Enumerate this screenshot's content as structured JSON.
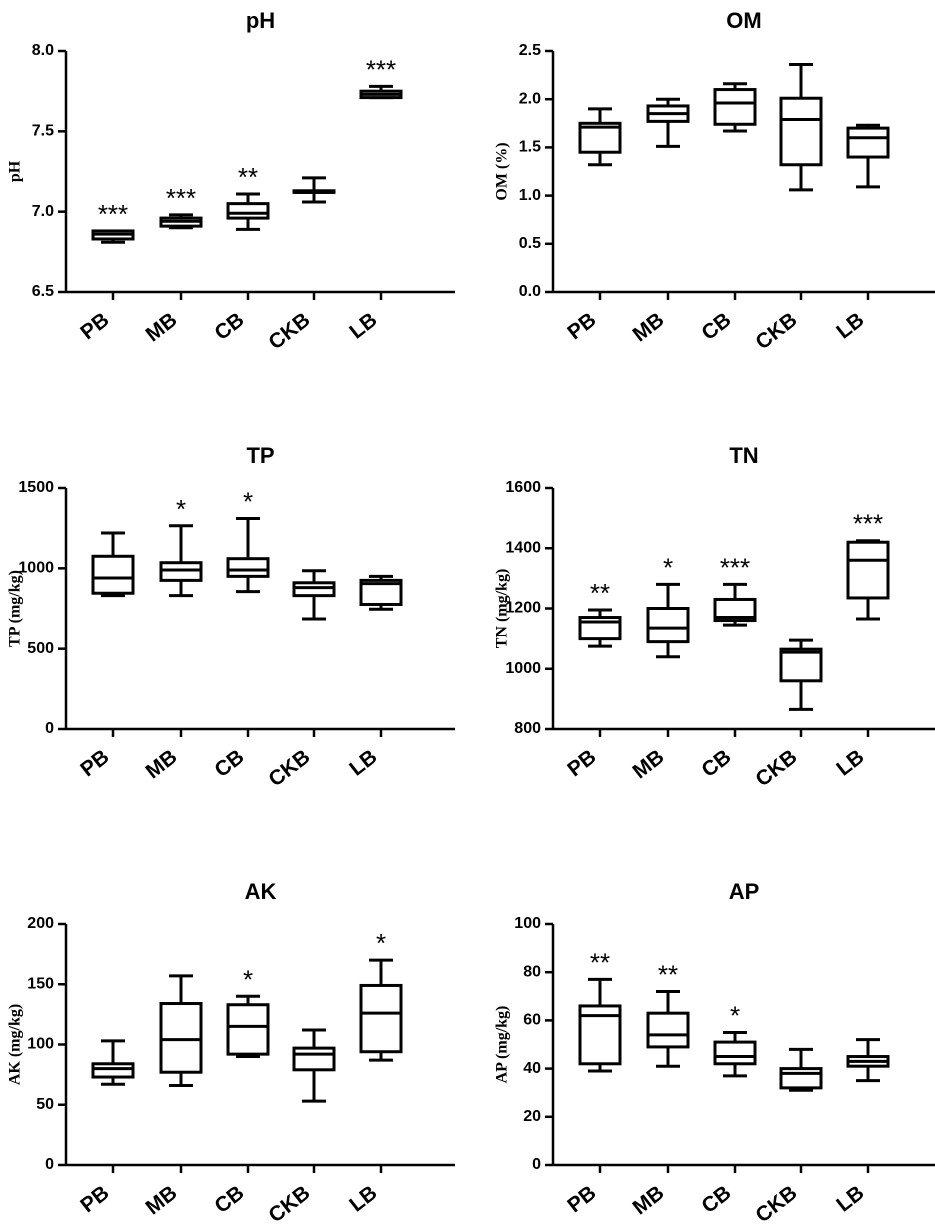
{
  "chart_data": [
    {
      "type": "boxplot",
      "title": "pH",
      "ylabel": "pH",
      "ylim": [
        6.5,
        8.0
      ],
      "yticks": [
        "6.5",
        "7.0",
        "7.5",
        "8.0"
      ],
      "categories": [
        "PB",
        "MB",
        "CB",
        "CKB",
        "LB"
      ],
      "boxes": [
        {
          "min": 6.81,
          "q1": 6.83,
          "median": 6.86,
          "q3": 6.88,
          "max": 6.88
        },
        {
          "min": 6.9,
          "q1": 6.91,
          "median": 6.94,
          "q3": 6.96,
          "max": 6.98
        },
        {
          "min": 6.89,
          "q1": 6.96,
          "median": 6.99,
          "q3": 7.05,
          "max": 7.11
        },
        {
          "min": 7.06,
          "q1": 7.12,
          "median": 7.12,
          "q3": 7.13,
          "max": 7.21
        },
        {
          "min": 7.71,
          "q1": 7.71,
          "median": 7.73,
          "q3": 7.75,
          "max": 7.78
        }
      ],
      "significance": [
        "***",
        "***",
        "**",
        "",
        "***"
      ]
    },
    {
      "type": "boxplot",
      "title": "OM",
      "ylabel": "OM (%)",
      "ylim": [
        0.0,
        2.5
      ],
      "yticks": [
        "0.0",
        "0.5",
        "1.0",
        "1.5",
        "2.0",
        "2.5"
      ],
      "categories": [
        "PB",
        "MB",
        "CB",
        "CKB",
        "LB"
      ],
      "boxes": [
        {
          "min": 1.32,
          "q1": 1.45,
          "median": 1.71,
          "q3": 1.75,
          "max": 1.9
        },
        {
          "min": 1.51,
          "q1": 1.77,
          "median": 1.85,
          "q3": 1.93,
          "max": 2.0
        },
        {
          "min": 1.67,
          "q1": 1.74,
          "median": 1.96,
          "q3": 2.1,
          "max": 2.16
        },
        {
          "min": 1.06,
          "q1": 1.32,
          "median": 1.79,
          "q3": 2.01,
          "max": 2.36
        },
        {
          "min": 1.09,
          "q1": 1.4,
          "median": 1.6,
          "q3": 1.7,
          "max": 1.73
        }
      ],
      "significance": [
        "",
        "",
        "",
        "",
        ""
      ]
    },
    {
      "type": "boxplot",
      "title": "TP",
      "ylabel": "TP (mg/kg)",
      "ylim": [
        0,
        1500
      ],
      "yticks": [
        "0",
        "500",
        "1000",
        "1500"
      ],
      "categories": [
        "PB",
        "MB",
        "CB",
        "CKB",
        "LB"
      ],
      "boxes": [
        {
          "min": 830,
          "q1": 845,
          "median": 940,
          "q3": 1075,
          "max": 1220
        },
        {
          "min": 830,
          "q1": 925,
          "median": 990,
          "q3": 1035,
          "max": 1265
        },
        {
          "min": 855,
          "q1": 950,
          "median": 990,
          "q3": 1060,
          "max": 1310
        },
        {
          "min": 685,
          "q1": 830,
          "median": 880,
          "q3": 910,
          "max": 985
        },
        {
          "min": 745,
          "q1": 775,
          "median": 905,
          "q3": 925,
          "max": 950
        }
      ],
      "significance": [
        "",
        "*",
        "*",
        "",
        ""
      ]
    },
    {
      "type": "boxplot",
      "title": "TN",
      "ylabel": "TN (mg/kg)",
      "ylim": [
        800,
        1600
      ],
      "yticks": [
        "800",
        "1000",
        "1200",
        "1400",
        "1600"
      ],
      "categories": [
        "PB",
        "MB",
        "CB",
        "CKB",
        "LB"
      ],
      "boxes": [
        {
          "min": 1075,
          "q1": 1100,
          "median": 1155,
          "q3": 1170,
          "max": 1195
        },
        {
          "min": 1040,
          "q1": 1090,
          "median": 1135,
          "q3": 1200,
          "max": 1280
        },
        {
          "min": 1145,
          "q1": 1160,
          "median": 1170,
          "q3": 1230,
          "max": 1280
        },
        {
          "min": 865,
          "q1": 960,
          "median": 1055,
          "q3": 1065,
          "max": 1095
        },
        {
          "min": 1165,
          "q1": 1235,
          "median": 1360,
          "q3": 1420,
          "max": 1425
        }
      ],
      "significance": [
        "**",
        "*",
        "***",
        "",
        "***"
      ]
    },
    {
      "type": "boxplot",
      "title": "AK",
      "ylabel": "AK (mg/kg)",
      "ylim": [
        0,
        200
      ],
      "yticks": [
        "0",
        "50",
        "100",
        "150",
        "200"
      ],
      "categories": [
        "PB",
        "MB",
        "CB",
        "CKB",
        "LB"
      ],
      "boxes": [
        {
          "min": 67,
          "q1": 73,
          "median": 80,
          "q3": 84,
          "max": 103
        },
        {
          "min": 66,
          "q1": 77,
          "median": 104,
          "q3": 134,
          "max": 157
        },
        {
          "min": 90,
          "q1": 92,
          "median": 115,
          "q3": 133,
          "max": 140
        },
        {
          "min": 53,
          "q1": 79,
          "median": 92,
          "q3": 97,
          "max": 112
        },
        {
          "min": 87,
          "q1": 94,
          "median": 126,
          "q3": 149,
          "max": 170
        }
      ],
      "significance": [
        "",
        "",
        "*",
        "",
        "*"
      ]
    },
    {
      "type": "boxplot",
      "title": "AP",
      "ylabel": "AP (mg/kg)",
      "ylim": [
        0,
        100
      ],
      "yticks": [
        "0",
        "20",
        "40",
        "60",
        "80",
        "100"
      ],
      "categories": [
        "PB",
        "MB",
        "CB",
        "CKB",
        "LB"
      ],
      "boxes": [
        {
          "min": 39,
          "q1": 42,
          "median": 62,
          "q3": 66,
          "max": 77
        },
        {
          "min": 41,
          "q1": 49,
          "median": 54,
          "q3": 63,
          "max": 72
        },
        {
          "min": 37,
          "q1": 42,
          "median": 45,
          "q3": 51,
          "max": 55
        },
        {
          "min": 31,
          "q1": 32,
          "median": 38,
          "q3": 40,
          "max": 48
        },
        {
          "min": 35,
          "q1": 41,
          "median": 43,
          "q3": 45,
          "max": 52
        }
      ],
      "significance": [
        "**",
        "**",
        "*",
        "",
        ""
      ]
    }
  ]
}
